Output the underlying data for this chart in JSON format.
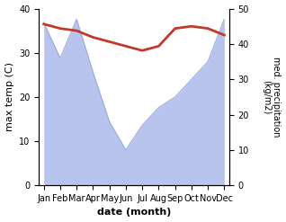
{
  "months": [
    "Jan",
    "Feb",
    "Mar",
    "Apr",
    "May",
    "Jun",
    "Jul",
    "Aug",
    "Sep",
    "Oct",
    "Nov",
    "Dec"
  ],
  "max_temp": [
    36.5,
    35.5,
    35.0,
    33.5,
    32.5,
    31.5,
    30.5,
    31.5,
    35.5,
    36.0,
    35.5,
    34.0
  ],
  "precipitation": [
    46,
    36,
    47,
    32,
    18,
    10,
    17,
    22,
    25,
    30,
    35,
    47
  ],
  "temp_color": "#c0392b",
  "precip_fill_color": "#b8c4ee",
  "precip_line_color": "#99aadd",
  "temp_ylim": [
    0,
    40
  ],
  "precip_ylim": [
    0,
    50
  ],
  "xlabel": "date (month)",
  "ylabel_left": "max temp (C)",
  "ylabel_right": "med. precipitation\n(kg/m2)",
  "temp_linewidth": 2.0,
  "fig_width": 3.18,
  "fig_height": 2.47,
  "dpi": 100
}
